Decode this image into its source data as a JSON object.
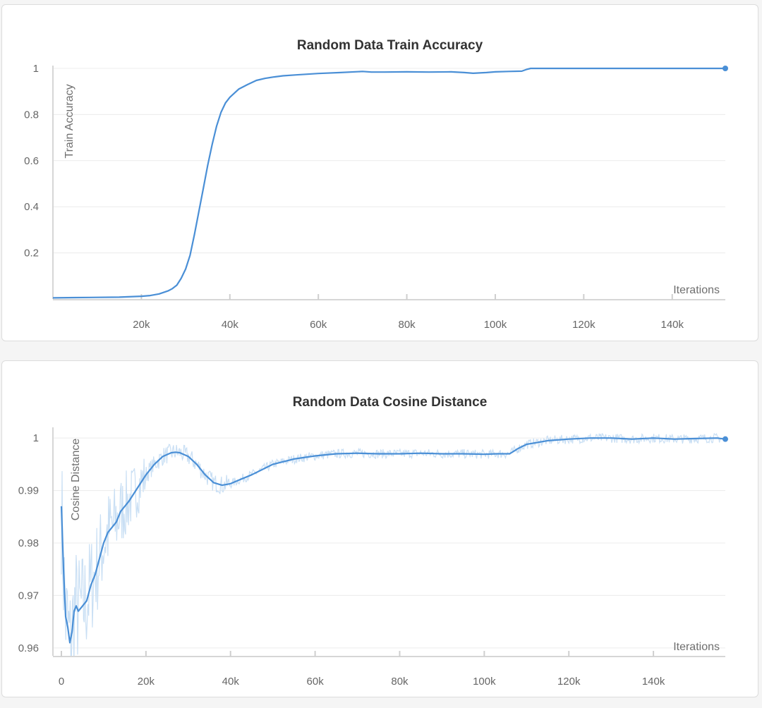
{
  "colors": {
    "series": "#4a8fd6",
    "raw": "#c9dff4"
  },
  "chart_data": [
    {
      "type": "line",
      "title": "Random Data Train Accuracy",
      "xlabel": "Iterations",
      "ylabel": "Train Accuracy",
      "xlim": [
        0,
        152000
      ],
      "ylim": [
        0,
        1
      ],
      "x_ticks": [
        {
          "v": 20000,
          "label": "20k"
        },
        {
          "v": 40000,
          "label": "40k"
        },
        {
          "v": 60000,
          "label": "60k"
        },
        {
          "v": 80000,
          "label": "80k"
        },
        {
          "v": 100000,
          "label": "100k"
        },
        {
          "v": 120000,
          "label": "120k"
        },
        {
          "v": 140000,
          "label": "140k"
        }
      ],
      "y_ticks": [
        {
          "v": 0.2,
          "label": "0.2"
        },
        {
          "v": 0.4,
          "label": "0.4"
        },
        {
          "v": 0.6,
          "label": "0.6"
        },
        {
          "v": 0.8,
          "label": "0.8"
        },
        {
          "v": 1,
          "label": "1"
        }
      ],
      "grid": true,
      "series": [
        {
          "x": [
            0,
            5000,
            10000,
            15000,
            20000,
            22000,
            24000,
            26000,
            27000,
            28000,
            29000,
            30000,
            31000,
            32000,
            33000,
            34000,
            35000,
            36000,
            37000,
            38000,
            39000,
            40000,
            42000,
            44000,
            46000,
            48000,
            50000,
            52000,
            55000,
            60000,
            65000,
            70000,
            72000,
            75000,
            80000,
            85000,
            90000,
            93000,
            95000,
            98000,
            100000,
            103000,
            106000,
            107000,
            108000,
            110000,
            120000,
            130000,
            140000,
            152000
          ],
          "y": [
            0.005,
            0.006,
            0.007,
            0.008,
            0.012,
            0.015,
            0.022,
            0.035,
            0.045,
            0.06,
            0.09,
            0.13,
            0.19,
            0.28,
            0.38,
            0.48,
            0.58,
            0.67,
            0.75,
            0.81,
            0.85,
            0.875,
            0.91,
            0.93,
            0.948,
            0.957,
            0.963,
            0.968,
            0.972,
            0.978,
            0.982,
            0.987,
            0.984,
            0.984,
            0.985,
            0.984,
            0.985,
            0.982,
            0.979,
            0.982,
            0.985,
            0.987,
            0.988,
            0.995,
            1.0,
            1.0,
            1.0,
            1.0,
            1.0,
            1.0
          ]
        }
      ]
    },
    {
      "type": "line",
      "title": "Random Data Cosine Distance",
      "xlabel": "Iterations",
      "ylabel": "Cosine Distance",
      "xlim": [
        -2000,
        157000
      ],
      "ylim": [
        0.9585,
        1.0015
      ],
      "x_ticks": [
        {
          "v": 0,
          "label": "0"
        },
        {
          "v": 20000,
          "label": "20k"
        },
        {
          "v": 40000,
          "label": "40k"
        },
        {
          "v": 60000,
          "label": "60k"
        },
        {
          "v": 80000,
          "label": "80k"
        },
        {
          "v": 100000,
          "label": "100k"
        },
        {
          "v": 120000,
          "label": "120k"
        },
        {
          "v": 140000,
          "label": "140k"
        }
      ],
      "y_ticks": [
        {
          "v": 0.96,
          "label": "0.96"
        },
        {
          "v": 0.97,
          "label": "0.97"
        },
        {
          "v": 0.98,
          "label": "0.98"
        },
        {
          "v": 0.99,
          "label": "0.99"
        },
        {
          "v": 1,
          "label": "1"
        }
      ],
      "grid": true,
      "series": [
        {
          "x": [
            0,
            500,
            1000,
            1500,
            2000,
            2500,
            3000,
            3500,
            4000,
            5000,
            6000,
            7000,
            8000,
            9000,
            10000,
            11000,
            12000,
            13000,
            14000,
            15000,
            16000,
            18000,
            20000,
            22000,
            24000,
            26000,
            27000,
            28000,
            30000,
            32000,
            34000,
            36000,
            38000,
            40000,
            42000,
            45000,
            50000,
            55000,
            60000,
            65000,
            70000,
            75000,
            80000,
            85000,
            90000,
            95000,
            100000,
            103000,
            106000,
            107000,
            108000,
            110000,
            115000,
            120000,
            125000,
            130000,
            135000,
            140000,
            145000,
            150000,
            155000,
            157000
          ],
          "y": [
            0.987,
            0.975,
            0.966,
            0.964,
            0.961,
            0.963,
            0.967,
            0.968,
            0.967,
            0.968,
            0.969,
            0.972,
            0.974,
            0.977,
            0.98,
            0.982,
            0.983,
            0.984,
            0.986,
            0.987,
            0.988,
            0.9905,
            0.993,
            0.995,
            0.9965,
            0.9972,
            0.9973,
            0.9972,
            0.9965,
            0.995,
            0.993,
            0.9915,
            0.991,
            0.9913,
            0.992,
            0.993,
            0.995,
            0.996,
            0.9966,
            0.997,
            0.9971,
            0.997,
            0.997,
            0.9971,
            0.997,
            0.997,
            0.9969,
            0.997,
            0.997,
            0.9975,
            0.998,
            0.9988,
            0.9995,
            0.9998,
            1.0,
            1.0,
            0.9998,
            1.0,
            0.9998,
            0.9999,
            1.0,
            0.9998
          ]
        }
      ]
    }
  ]
}
